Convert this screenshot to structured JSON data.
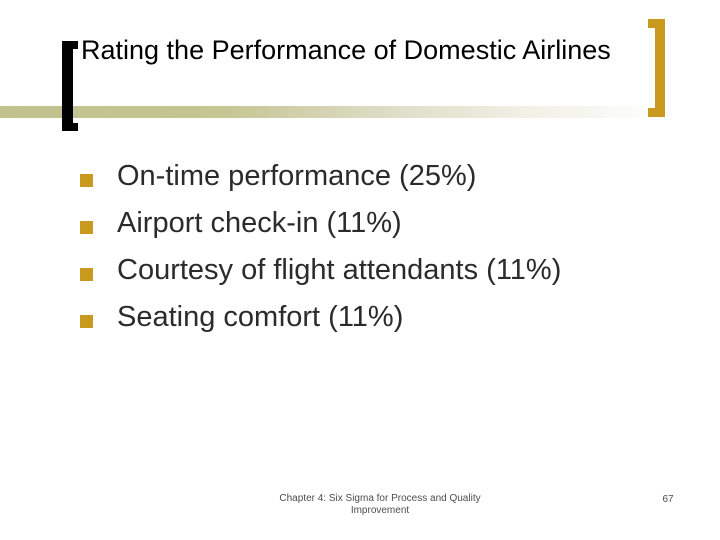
{
  "title": "Rating the Performance of Domestic Airlines",
  "bullets": [
    "On-time performance (25%)",
    "Airport check-in (11%)",
    "Courtesy of flight attendants (11%)",
    "Seating comfort (11%)"
  ],
  "footer": {
    "line1": "Chapter 4: Six Sigma for Process and Quality",
    "line2": "Improvement",
    "page_number": "67"
  },
  "icons": {
    "bullet": "gold-square-bullet",
    "title_left_decoration": "black-open-bracket",
    "title_right_decoration": "gold-close-bracket"
  },
  "colors": {
    "accent_gold": "#c8991c",
    "band_olive": "#c1c18f",
    "title_text": "#000000",
    "body_text": "#2b2b2b",
    "footer_text": "#4d4d4d",
    "background": "#ffffff"
  }
}
